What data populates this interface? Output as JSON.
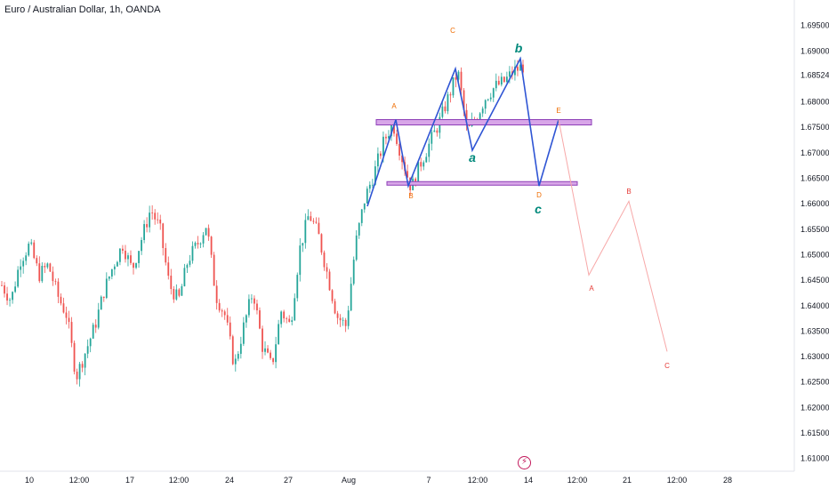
{
  "header": {
    "title": "Euro / Australian Dollar, 1h, OANDA"
  },
  "colors": {
    "up": "#26a69a",
    "down": "#ef5350",
    "wave_line": "#2f55d4",
    "zone_fill": "#d8a6e8",
    "zone_stroke": "#8e3fb8",
    "projection_line": "#f7a8a8",
    "label_orange": "#ef6c00",
    "label_teal": "#00897b",
    "label_red": "#e53935"
  },
  "chart_data": {
    "type": "candlestick",
    "symbol": "EURAUD",
    "timeframe": "1h",
    "ylim": [
      1.6075,
      1.7
    ],
    "y_ticks": [
      "1.69500",
      "1.69000",
      "1.68524",
      "1.68000",
      "1.67500",
      "1.67000",
      "1.66500",
      "1.66000",
      "1.65500",
      "1.65000",
      "1.64500",
      "1.64000",
      "1.63500",
      "1.63000",
      "1.62500",
      "1.62000",
      "1.61500",
      "1.61000"
    ],
    "x_ticks": [
      "10",
      "12:00",
      "17",
      "12:00",
      "24",
      "27",
      "Aug",
      "7",
      "12:00",
      "14",
      "12:00",
      "21",
      "12:00",
      "28"
    ],
    "price_path": [
      1.644,
      1.641,
      1.649,
      1.652,
      1.646,
      1.648,
      1.642,
      1.638,
      1.626,
      1.631,
      1.636,
      1.643,
      1.648,
      1.652,
      1.647,
      1.653,
      1.659,
      1.655,
      1.644,
      1.641,
      1.649,
      1.652,
      1.656,
      1.642,
      1.638,
      1.628,
      1.636,
      1.643,
      1.632,
      1.628,
      1.639,
      1.636,
      1.651,
      1.658,
      1.654,
      1.646,
      1.638,
      1.636,
      1.652,
      1.661,
      1.666,
      1.672,
      1.676,
      1.669,
      1.663,
      1.668,
      1.672,
      1.676,
      1.681,
      1.686,
      1.674,
      1.677,
      1.681,
      1.683,
      1.684,
      1.686,
      1.687
    ],
    "wave_lines": [
      {
        "name": "abc-b-leg",
        "points": [
          {
            "bar": 0,
            "y": 1.6595
          },
          {
            "bar": 1,
            "y": 1.6765
          },
          {
            "bar": 2,
            "y": 1.6635
          },
          {
            "bar": 3,
            "y": 1.6865
          },
          {
            "bar": 4,
            "y": 1.6705
          },
          {
            "bar": 5,
            "y": 1.6885
          },
          {
            "bar": 6,
            "y": 1.6635
          },
          {
            "bar": 7,
            "y": 1.6765
          }
        ]
      }
    ],
    "projection": [
      {
        "y": 1.6765
      },
      {
        "y": 1.646
      },
      {
        "y": 1.6605
      },
      {
        "y": 1.631
      }
    ],
    "zones": [
      {
        "name": "upper-zone",
        "y": 1.676
      },
      {
        "name": "lower-zone",
        "y": 1.664
      }
    ],
    "wave_labels": {
      "orange": [
        "A",
        "B",
        "C",
        "D",
        "E"
      ],
      "teal": [
        "a",
        "b",
        "c"
      ],
      "projection": [
        "A",
        "B",
        "C"
      ]
    }
  }
}
